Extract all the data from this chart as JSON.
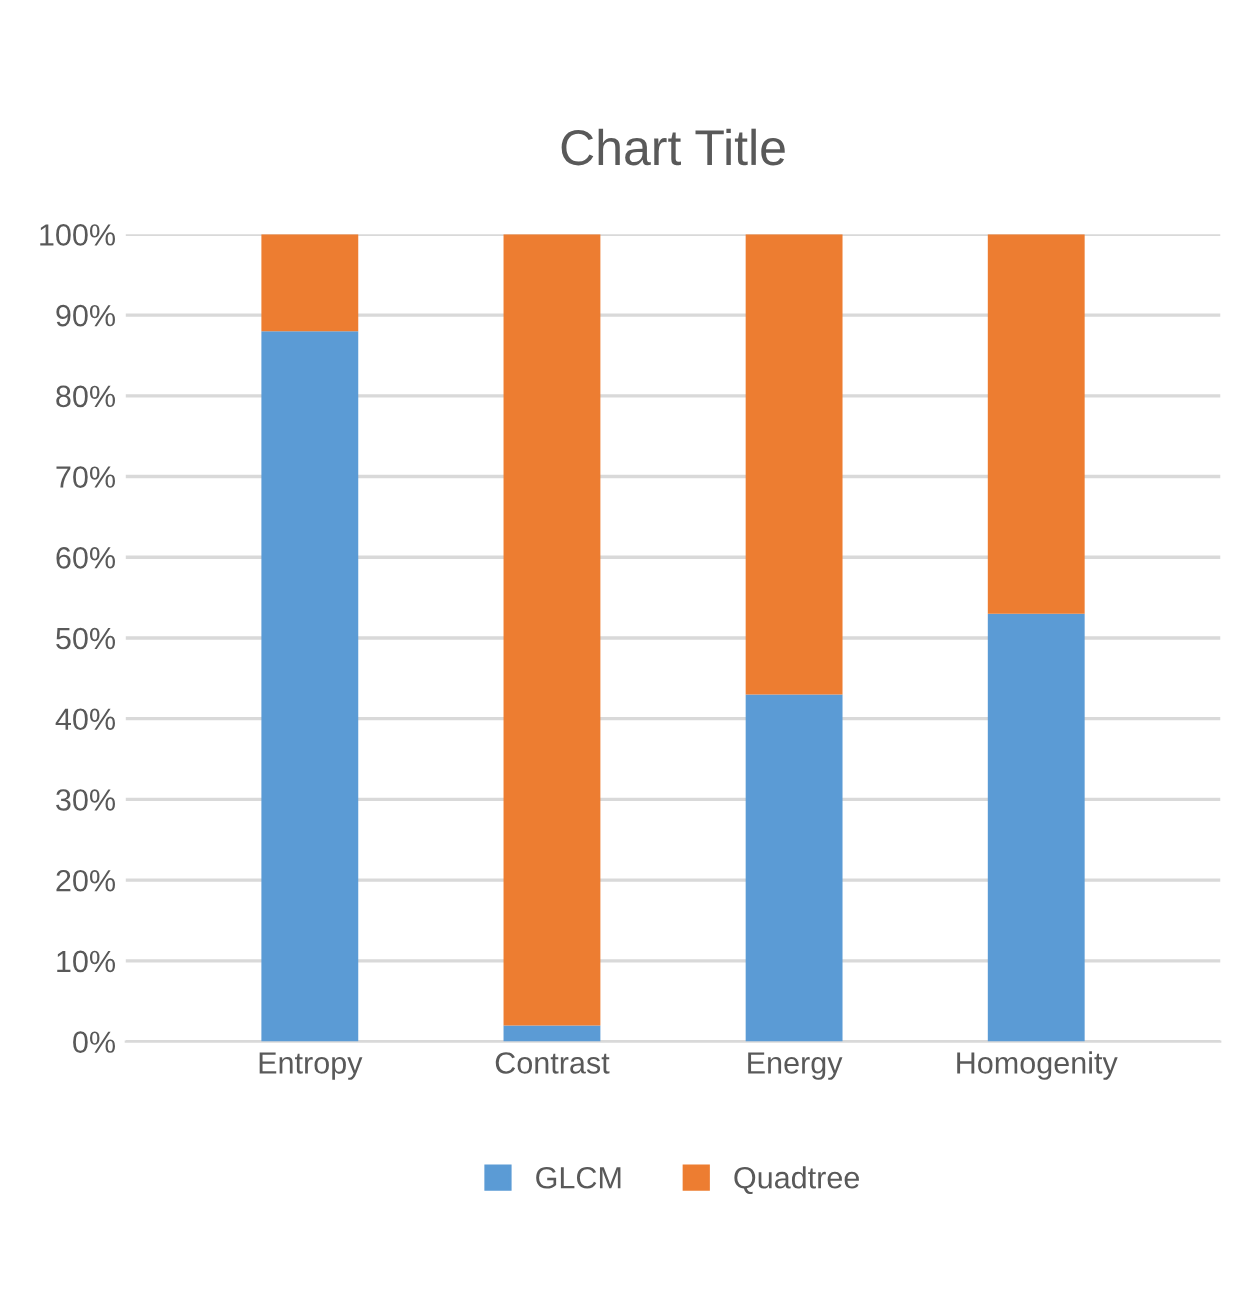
{
  "chart_data": {
    "type": "bar",
    "title": "Chart Title",
    "stacked": true,
    "categories": [
      "Entropy",
      "Contrast",
      "Energy",
      "Homogenity"
    ],
    "series": [
      {
        "name": "GLCM",
        "color": "#5b9bd5",
        "values": [
          88,
          2,
          43,
          53
        ]
      },
      {
        "name": "Quadtree",
        "color": "#ed7d31",
        "values": [
          12,
          98,
          57,
          47
        ]
      }
    ],
    "ylim": [
      0,
      100
    ],
    "yticks": [
      {
        "value": 0,
        "label": "0%"
      },
      {
        "value": 10,
        "label": "10%"
      },
      {
        "value": 20,
        "label": "20%"
      },
      {
        "value": 30,
        "label": "30%"
      },
      {
        "value": 40,
        "label": "40%"
      },
      {
        "value": 50,
        "label": "50%"
      },
      {
        "value": 60,
        "label": "60%"
      },
      {
        "value": 70,
        "label": "70%"
      },
      {
        "value": 80,
        "label": "80%"
      },
      {
        "value": 90,
        "label": "90%"
      },
      {
        "value": 100,
        "label": "100%"
      }
    ],
    "grid": "y",
    "legend": "bottom"
  }
}
